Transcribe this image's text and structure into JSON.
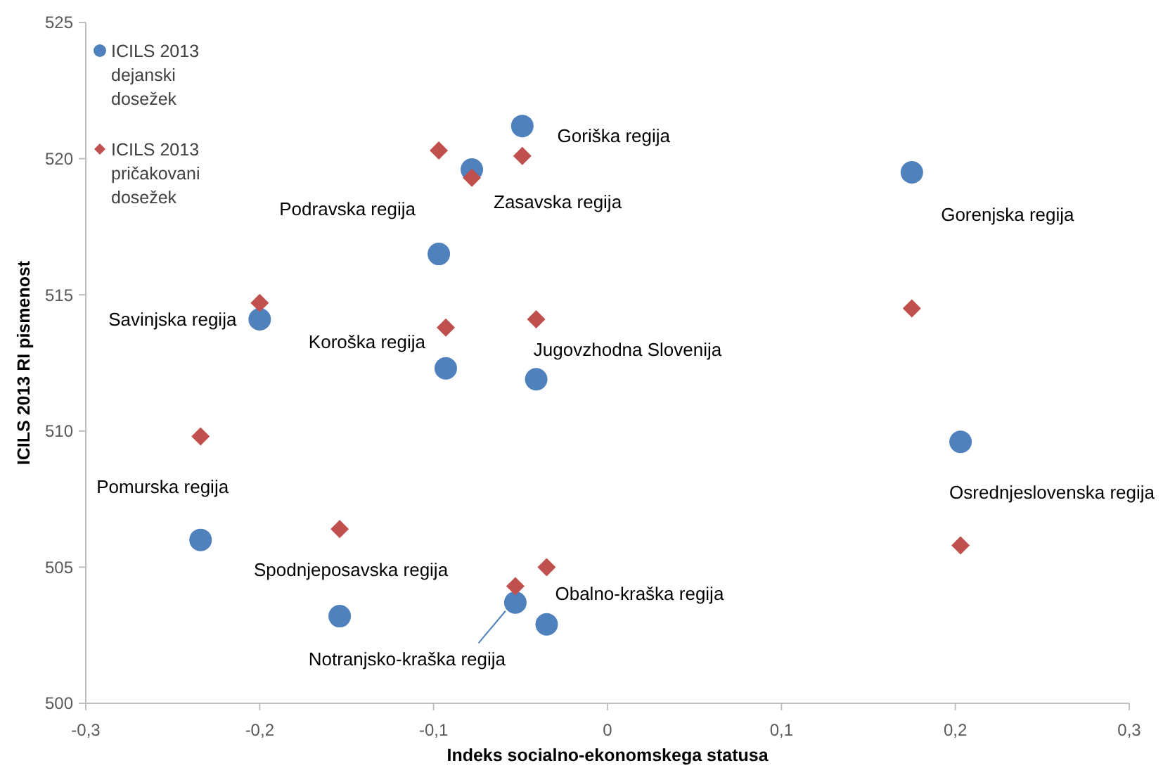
{
  "chart_data": {
    "type": "scatter",
    "xlabel": "Indeks socialno-ekonomskega statusa",
    "ylabel": "ICILS 2013 RI pismenost",
    "xlim": [
      -0.3,
      0.3
    ],
    "xticks": [
      {
        "value": -0.3,
        "label": "-0,3"
      },
      {
        "value": -0.2,
        "label": "-0,2"
      },
      {
        "value": -0.1,
        "label": "-0,1"
      },
      0,
      {
        "value": 0.1,
        "label": "0,1"
      },
      {
        "value": 0.2,
        "label": "0,2"
      },
      {
        "value": 0.3,
        "label": "0,3"
      }
    ],
    "ylim": [
      500,
      525
    ],
    "yticks": [
      500,
      505,
      510,
      515,
      520,
      525
    ],
    "grid": false,
    "legend": "top left",
    "series": [
      {
        "name": "ICILS 2013 dejanski dosežek",
        "color": "#4f81bd",
        "marker": "circle",
        "x": [
          -0.049,
          -0.097,
          -0.078,
          0.175,
          -0.2,
          -0.093,
          -0.041,
          -0.234,
          0.203,
          -0.154,
          -0.035,
          -0.053
        ],
        "values": [
          521.2,
          516.5,
          519.6,
          519.5,
          514.1,
          512.3,
          511.9,
          506.0,
          509.6,
          503.2,
          502.9,
          503.7
        ]
      },
      {
        "name": "ICILS 2013 pričakovani dosežek",
        "color": "#c0504d",
        "marker": "diamond",
        "x": [
          -0.049,
          -0.097,
          -0.078,
          0.175,
          -0.2,
          -0.093,
          -0.041,
          -0.234,
          0.203,
          -0.154,
          -0.035,
          -0.053
        ],
        "values": [
          520.1,
          520.3,
          519.3,
          514.5,
          514.7,
          513.8,
          514.1,
          509.8,
          505.8,
          506.4,
          505.0,
          504.3
        ]
      }
    ],
    "annotations": [
      {
        "text": "Goriška regija",
        "x": -0.049,
        "y": 521.2
      },
      {
        "text": "Podravska regija",
        "x": -0.097,
        "y": 516.5
      },
      {
        "text": "Zasavska regija",
        "x": -0.078,
        "y": 519.6
      },
      {
        "text": "Gorenjska regija",
        "x": 0.175,
        "y": 519.5
      },
      {
        "text": "Savinjska regija",
        "x": -0.2,
        "y": 514.1
      },
      {
        "text": "Koroška regija",
        "x": -0.093,
        "y": 512.3
      },
      {
        "text": "Jugovzhodna Slovenija",
        "x": -0.041,
        "y": 511.9
      },
      {
        "text": "Pomurska regija",
        "x": -0.234,
        "y": 506.0
      },
      {
        "text": "Osrednjeslovenska regija",
        "x": 0.203,
        "y": 509.6
      },
      {
        "text": "Spodnjeposavska regija",
        "x": -0.154,
        "y": 503.2
      },
      {
        "text": "Obalno-kraška regija",
        "x": -0.035,
        "y": 502.9
      },
      {
        "text": "Notranjsko-kraška regija",
        "x": -0.053,
        "y": 503.7
      }
    ]
  }
}
